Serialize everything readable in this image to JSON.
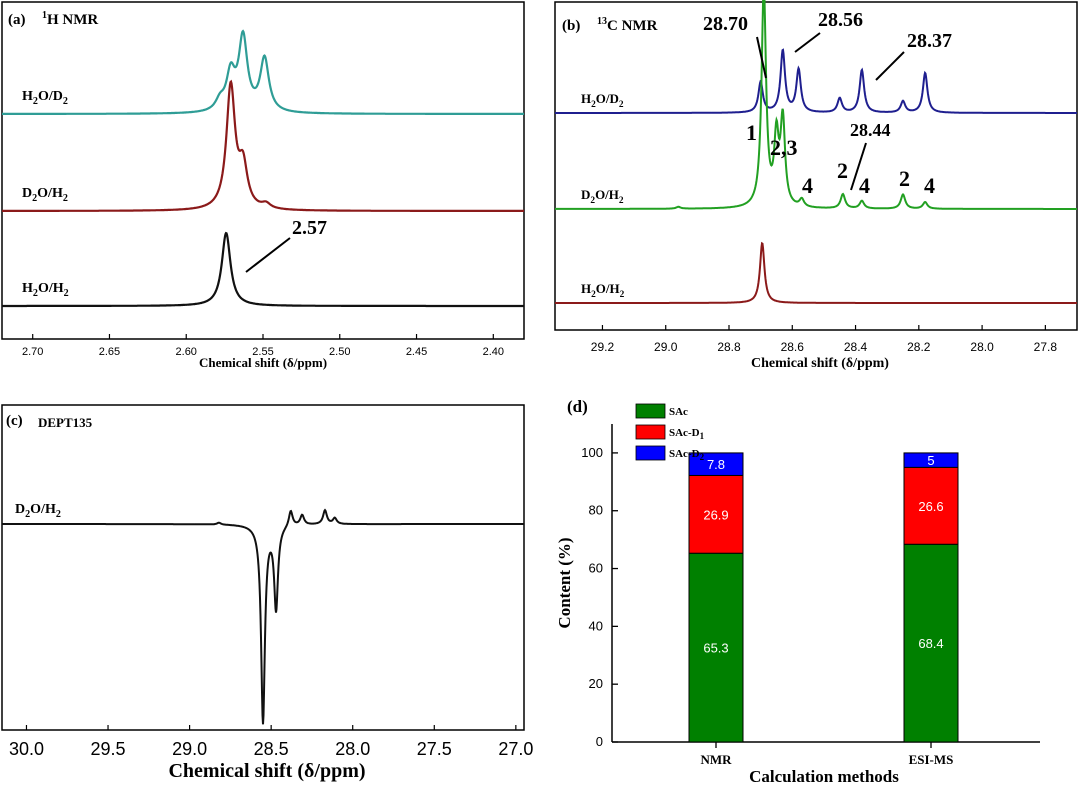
{
  "chart_data": [
    {
      "panel": "(a)",
      "type": "line",
      "title": "1H NMR",
      "title_sup": "1",
      "title_rest": "H NMR",
      "xlabel": "Chemical shift (δ/ppm)",
      "xlim": [
        2.72,
        2.38
      ],
      "xticks": [
        "2.70",
        "2.65",
        "2.60",
        "2.55",
        "2.50",
        "2.45",
        "2.40"
      ],
      "series": [
        {
          "name": "H2O/D2",
          "label_main": "H",
          "label_s1": "2",
          "label_mid": "O/D",
          "label_s2": "2",
          "color": "#2f9d96",
          "peaks": [
            {
              "x": 2.571,
              "h": 0.45
            },
            {
              "x": 2.563,
              "h": 0.9
            },
            {
              "x": 2.549,
              "h": 0.65
            },
            {
              "x": 2.578,
              "h": 0.12
            }
          ]
        },
        {
          "name": "D2O/H2",
          "label_main": "D",
          "label_s1": "2",
          "label_mid": "O/H",
          "label_s2": "2",
          "color": "#8b1a1a",
          "peaks": [
            {
              "x": 2.571,
              "h": 1.0
            },
            {
              "x": 2.563,
              "h": 0.33
            },
            {
              "x": 2.548,
              "h": 0.04
            }
          ]
        },
        {
          "name": "H2O/H2",
          "label_main": "H",
          "label_s1": "2",
          "label_mid": "O/H",
          "label_s2": "2",
          "color": "#111111",
          "peaks": [
            {
              "x": 2.574,
              "h": 1.0
            }
          ]
        }
      ],
      "annotations": [
        {
          "text": "2.57",
          "x": 2.57
        }
      ]
    },
    {
      "panel": "(b)",
      "type": "line",
      "title": "13C NMR",
      "title_sup": "13",
      "title_rest": "C NMR",
      "xlabel": "Chemical shift (δ/ppm)",
      "xlim": [
        29.35,
        27.7
      ],
      "xticks": [
        "29.2",
        "29.0",
        "28.8",
        "28.6",
        "28.4",
        "28.2",
        "28.0",
        "27.8"
      ],
      "series": [
        {
          "name": "H2O/D2",
          "label_main": "H",
          "label_s1": "2",
          "label_mid": "O/D",
          "label_s2": "2",
          "color": "#1f1f8f",
          "peaks": [
            {
              "x": 28.7,
              "h": 0.32
            },
            {
              "x": 28.63,
              "h": 0.65
            },
            {
              "x": 28.58,
              "h": 0.45
            },
            {
              "x": 28.45,
              "h": 0.15
            },
            {
              "x": 28.38,
              "h": 0.45
            },
            {
              "x": 28.25,
              "h": 0.12
            },
            {
              "x": 28.18,
              "h": 0.42
            }
          ]
        },
        {
          "name": "D2O/H2",
          "label_main": "D",
          "label_s1": "2",
          "label_mid": "O/H",
          "label_s2": "2",
          "color": "#22a022",
          "peaks": [
            {
              "x": 28.69,
              "h": 2.3
            },
            {
              "x": 28.65,
              "h": 0.7
            },
            {
              "x": 28.63,
              "h": 0.9
            },
            {
              "x": 28.57,
              "h": 0.08
            },
            {
              "x": 28.44,
              "h": 0.15
            },
            {
              "x": 28.38,
              "h": 0.08
            },
            {
              "x": 28.25,
              "h": 0.15
            },
            {
              "x": 28.18,
              "h": 0.07
            },
            {
              "x": 28.96,
              "h": 0.02
            }
          ]
        },
        {
          "name": "H2O/H2",
          "label_main": "H",
          "label_s1": "2",
          "label_mid": "O/H",
          "label_s2": "2",
          "color": "#8b1a1a",
          "peaks": [
            {
              "x": 28.695,
              "h": 0.6
            }
          ]
        }
      ],
      "annotations": [
        "28.70",
        "28.56",
        "28.37",
        "28.44",
        "1",
        "2,3",
        "4",
        "2",
        "4",
        "2",
        "4"
      ]
    },
    {
      "panel": "(c)",
      "type": "line",
      "title": "DEPT135",
      "xlabel": "Chemical shift (δ/ppm)",
      "xlim": [
        30.15,
        26.95
      ],
      "xticks": [
        "30.0",
        "29.5",
        "29.0",
        "28.5",
        "28.0",
        "27.5",
        "27.0"
      ],
      "series": [
        {
          "name": "D2O/H2",
          "label_main": "D",
          "label_s1": "2",
          "label_mid": "O/H",
          "label_s2": "2",
          "color": "#111111",
          "peaks": [
            {
              "x": 28.55,
              "h": -1.0
            },
            {
              "x": 28.47,
              "h": -0.42
            },
            {
              "x": 28.38,
              "h": 0.08
            },
            {
              "x": 28.31,
              "h": 0.05
            },
            {
              "x": 28.17,
              "h": 0.07
            },
            {
              "x": 28.11,
              "h": 0.03
            },
            {
              "x": 28.82,
              "h": 0.01
            }
          ]
        }
      ]
    },
    {
      "panel": "(d)",
      "type": "bar",
      "stacked": true,
      "categories": [
        "NMR",
        "ESI-MS"
      ],
      "xlabel": "Calculation methods",
      "ylabel": "Content (%)",
      "ylim": [
        0,
        110
      ],
      "yticks": [
        "0",
        "20",
        "40",
        "60",
        "80",
        "100"
      ],
      "legend_position": "top-left",
      "series": [
        {
          "name": "SAc",
          "label_main": "SAc",
          "label_sub": "",
          "color": "#008000",
          "values": [
            65.3,
            68.4
          ],
          "labels": [
            "65.3",
            "68.4"
          ]
        },
        {
          "name": "SAc-D1",
          "label_main": "SAc-D",
          "label_sub": "1",
          "color": "#ff0000",
          "values": [
            26.9,
            26.6
          ],
          "labels": [
            "26.9",
            "26.6"
          ]
        },
        {
          "name": "SAc-D2",
          "label_main": "SAc-D",
          "label_sub": "2",
          "color": "#0000ff",
          "values": [
            7.8,
            5
          ],
          "labels": [
            "7.8",
            "5"
          ]
        }
      ]
    }
  ]
}
